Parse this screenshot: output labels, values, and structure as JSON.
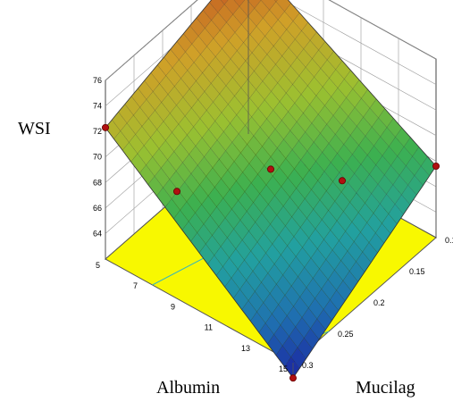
{
  "chart_data": {
    "type": "surface",
    "title": "",
    "z_label": "WSI",
    "x_label": "Albumin",
    "y_label": "Mucilag",
    "z_ticks": [
      "64",
      "66",
      "68",
      "70",
      "72",
      "74",
      "76"
    ],
    "x_ticks": [
      "5",
      "7",
      "9",
      "11",
      "13",
      "15"
    ],
    "y_ticks": [
      "0.1",
      "0.15",
      "0.2",
      "0.25",
      "0.3"
    ],
    "x_range": [
      5,
      15
    ],
    "y_range": [
      0.1,
      0.3
    ],
    "z_range": [
      62,
      76
    ],
    "surface_corners": [
      {
        "albumin": 5,
        "mucilage": 0.1,
        "wsi": 76.0
      },
      {
        "albumin": 15,
        "mucilage": 0.1,
        "wsi": 67.6
      },
      {
        "albumin": 15,
        "mucilage": 0.3,
        "wsi": 60.8
      },
      {
        "albumin": 5,
        "mucilage": 0.3,
        "wsi": 72.3
      }
    ],
    "design_points": [
      {
        "albumin": 5,
        "mucilage": 0.1,
        "wsi": 76.0
      },
      {
        "albumin": 15,
        "mucilage": 0.1,
        "wsi": 67.6
      },
      {
        "albumin": 15,
        "mucilage": 0.3,
        "wsi": 60.8
      },
      {
        "albumin": 5,
        "mucilage": 0.3,
        "wsi": 72.3
      },
      {
        "albumin": 10,
        "mucilage": 0.2,
        "wsi": 68.2
      },
      {
        "albumin": 10,
        "mucilage": 0.1,
        "wsi": 62.4
      },
      {
        "albumin": 5,
        "mucilage": 0.2,
        "wsi": 62.4
      }
    ],
    "colorscale": [
      "#1a1aa0",
      "#1f6fb0",
      "#22a0a0",
      "#3cb050",
      "#9cc030",
      "#d0a028",
      "#c04020"
    ],
    "floor_color": "#f8f800",
    "grid": true
  }
}
